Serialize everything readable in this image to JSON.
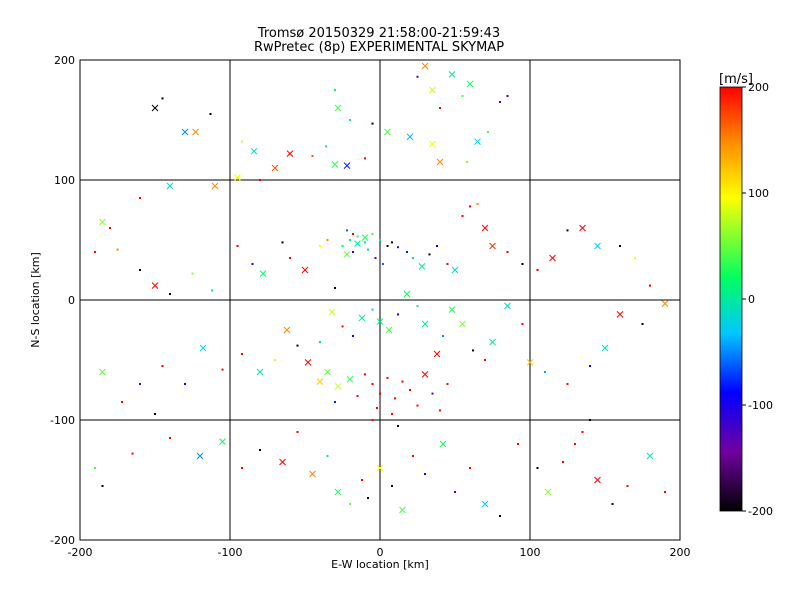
{
  "chart_data": [
    {
      "type": "scatter",
      "title": "Tromsø 20150329 21:58:00-21:59:43",
      "subtitle": "RwPretec (8p) EXPERIMENTAL SKYMAP",
      "xlabel": "E-W location [km]",
      "ylabel": "N-S location [km]",
      "xlim": [
        -200,
        200
      ],
      "ylim": [
        -200,
        200
      ],
      "xticks": [
        -200,
        -100,
        0,
        100,
        200
      ],
      "yticks": [
        -200,
        -100,
        0,
        100,
        200
      ],
      "xtick_labels": [
        "-200",
        "-100",
        "0",
        "100",
        "200"
      ],
      "ytick_labels": [
        "-200",
        "-100",
        "0",
        "100",
        "200"
      ],
      "grid": true,
      "colorscale": {
        "unit": "[m/s]",
        "range": [
          -200,
          200
        ],
        "ticks": [
          -200,
          -100,
          0,
          100,
          200
        ],
        "tick_labels": [
          "-200",
          "-100",
          "0",
          "100",
          "200"
        ],
        "stops": [
          "#000000",
          "#7000a0",
          "#0000ff",
          "#00c8ff",
          "#00ff60",
          "#ffff00",
          "#ff8c00",
          "#ff0000"
        ]
      },
      "markers": [
        "x",
        "dot"
      ],
      "points": [
        [
          -150,
          160,
          -200,
          1
        ],
        [
          -145,
          168,
          -200,
          0
        ],
        [
          -123,
          140,
          150,
          1
        ],
        [
          -113,
          155,
          -200,
          0
        ],
        [
          -130,
          140,
          -50,
          1
        ],
        [
          -92,
          132,
          80,
          0
        ],
        [
          -84,
          124,
          -10,
          1
        ],
        [
          -60,
          122,
          200,
          1
        ],
        [
          -45,
          120,
          170,
          0
        ],
        [
          -36,
          128,
          -20,
          0
        ],
        [
          -30,
          113,
          30,
          1
        ],
        [
          -22,
          112,
          -80,
          1
        ],
        [
          -10,
          118,
          200,
          0
        ],
        [
          -5,
          147,
          -200,
          0
        ],
        [
          5,
          140,
          40,
          1
        ],
        [
          20,
          136,
          -40,
          1
        ],
        [
          35,
          130,
          100,
          1
        ],
        [
          40,
          115,
          150,
          1
        ],
        [
          58,
          115,
          60,
          0
        ],
        [
          65,
          132,
          -20,
          1
        ],
        [
          72,
          140,
          40,
          0
        ],
        [
          80,
          165,
          -150,
          0
        ],
        [
          85,
          170,
          -120,
          0
        ],
        [
          55,
          170,
          40,
          0
        ],
        [
          60,
          180,
          20,
          1
        ],
        [
          48,
          188,
          0,
          1
        ],
        [
          35,
          175,
          80,
          1
        ],
        [
          25,
          186,
          -120,
          0
        ],
        [
          30,
          195,
          150,
          1
        ],
        [
          40,
          160,
          200,
          0
        ],
        [
          -70,
          110,
          170,
          1
        ],
        [
          -80,
          100,
          200,
          0
        ],
        [
          -95,
          102,
          90,
          1
        ],
        [
          -110,
          95,
          150,
          1
        ],
        [
          -140,
          95,
          -20,
          1
        ],
        [
          -160,
          85,
          200,
          0
        ],
        [
          -180,
          60,
          200,
          0
        ],
        [
          -185,
          65,
          60,
          1
        ],
        [
          -190,
          40,
          200,
          0
        ],
        [
          -175,
          42,
          150,
          0
        ],
        [
          -160,
          25,
          -200,
          0
        ],
        [
          -150,
          12,
          200,
          1
        ],
        [
          -140,
          5,
          -200,
          0
        ],
        [
          -125,
          22,
          60,
          0
        ],
        [
          -112,
          8,
          -10,
          0
        ],
        [
          -95,
          45,
          200,
          0
        ],
        [
          -85,
          30,
          -100,
          0
        ],
        [
          -78,
          22,
          20,
          1
        ],
        [
          -65,
          48,
          -200,
          0
        ],
        [
          -60,
          35,
          200,
          0
        ],
        [
          -50,
          25,
          200,
          1
        ],
        [
          -40,
          45,
          100,
          0
        ],
        [
          -35,
          50,
          150,
          0
        ],
        [
          -30,
          10,
          -200,
          0
        ],
        [
          -22,
          38,
          50,
          1
        ],
        [
          -18,
          55,
          200,
          0
        ],
        [
          -15,
          47,
          0,
          1
        ],
        [
          -10,
          52,
          30,
          1
        ],
        [
          -8,
          42,
          -20,
          0
        ],
        [
          -3,
          35,
          -150,
          0
        ],
        [
          2,
          30,
          -60,
          0
        ],
        [
          8,
          48,
          -200,
          0
        ],
        [
          12,
          44,
          -120,
          0
        ],
        [
          18,
          40,
          -80,
          0
        ],
        [
          22,
          35,
          -30,
          0
        ],
        [
          28,
          28,
          0,
          1
        ],
        [
          33,
          38,
          -200,
          0
        ],
        [
          38,
          45,
          -90,
          0
        ],
        [
          45,
          30,
          200,
          0
        ],
        [
          50,
          25,
          -10,
          1
        ],
        [
          55,
          70,
          200,
          0
        ],
        [
          60,
          78,
          200,
          0
        ],
        [
          65,
          80,
          150,
          0
        ],
        [
          70,
          60,
          200,
          1
        ],
        [
          75,
          45,
          180,
          1
        ],
        [
          85,
          40,
          200,
          0
        ],
        [
          95,
          30,
          -200,
          0
        ],
        [
          105,
          25,
          200,
          0
        ],
        [
          115,
          35,
          200,
          1
        ],
        [
          125,
          58,
          -200,
          0
        ],
        [
          135,
          60,
          200,
          1
        ],
        [
          145,
          45,
          -30,
          1
        ],
        [
          160,
          45,
          -200,
          0
        ],
        [
          170,
          35,
          100,
          0
        ],
        [
          180,
          12,
          200,
          0
        ],
        [
          190,
          -3,
          150,
          1
        ],
        [
          175,
          -20,
          -200,
          0
        ],
        [
          160,
          -12,
          200,
          1
        ],
        [
          150,
          -40,
          -10,
          1
        ],
        [
          140,
          -55,
          -100,
          0
        ],
        [
          125,
          -70,
          200,
          0
        ],
        [
          110,
          -60,
          -40,
          0
        ],
        [
          100,
          -52,
          120,
          1
        ],
        [
          95,
          -20,
          200,
          0
        ],
        [
          85,
          -5,
          -20,
          1
        ],
        [
          75,
          -35,
          0,
          1
        ],
        [
          70,
          -50,
          200,
          0
        ],
        [
          62,
          -42,
          -200,
          0
        ],
        [
          55,
          -20,
          60,
          1
        ],
        [
          48,
          -8,
          30,
          1
        ],
        [
          42,
          -30,
          -50,
          0
        ],
        [
          38,
          -45,
          200,
          1
        ],
        [
          30,
          -20,
          0,
          1
        ],
        [
          25,
          -5,
          -10,
          0
        ],
        [
          18,
          5,
          20,
          1
        ],
        [
          12,
          -12,
          -100,
          0
        ],
        [
          6,
          -25,
          40,
          1
        ],
        [
          0,
          -18,
          10,
          1
        ],
        [
          -5,
          -8,
          -20,
          0
        ],
        [
          -12,
          -15,
          0,
          1
        ],
        [
          -18,
          -30,
          -100,
          0
        ],
        [
          -25,
          -22,
          200,
          0
        ],
        [
          -32,
          -10,
          80,
          1
        ],
        [
          -40,
          -35,
          -30,
          0
        ],
        [
          -48,
          -52,
          200,
          1
        ],
        [
          -55,
          -38,
          -200,
          0
        ],
        [
          -62,
          -25,
          150,
          1
        ],
        [
          -70,
          -50,
          80,
          0
        ],
        [
          -80,
          -60,
          -10,
          1
        ],
        [
          -92,
          -45,
          200,
          0
        ],
        [
          -105,
          -58,
          200,
          0
        ],
        [
          -118,
          -40,
          -20,
          1
        ],
        [
          -130,
          -70,
          -100,
          0
        ],
        [
          -145,
          -55,
          200,
          0
        ],
        [
          -160,
          -70,
          -120,
          0
        ],
        [
          -172,
          -85,
          200,
          0
        ],
        [
          -185,
          -60,
          50,
          1
        ],
        [
          -190,
          -140,
          40,
          0
        ],
        [
          -185,
          -155,
          -200,
          0
        ],
        [
          -165,
          -128,
          200,
          0
        ],
        [
          -150,
          -95,
          -200,
          0
        ],
        [
          -140,
          -115,
          200,
          0
        ],
        [
          -120,
          -130,
          -50,
          1
        ],
        [
          -105,
          -118,
          20,
          1
        ],
        [
          -92,
          -140,
          200,
          0
        ],
        [
          -80,
          -125,
          -200,
          0
        ],
        [
          -65,
          -135,
          200,
          1
        ],
        [
          -55,
          -110,
          200,
          0
        ],
        [
          -45,
          -145,
          150,
          1
        ],
        [
          -35,
          -130,
          -10,
          0
        ],
        [
          -28,
          -160,
          30,
          1
        ],
        [
          -20,
          -170,
          50,
          0
        ],
        [
          -12,
          -150,
          200,
          0
        ],
        [
          -8,
          -165,
          -200,
          0
        ],
        [
          0,
          -140,
          100,
          1
        ],
        [
          8,
          -155,
          -200,
          0
        ],
        [
          15,
          -175,
          40,
          1
        ],
        [
          22,
          -130,
          200,
          0
        ],
        [
          30,
          -145,
          -100,
          0
        ],
        [
          42,
          -120,
          20,
          1
        ],
        [
          50,
          -160,
          -150,
          0
        ],
        [
          60,
          -140,
          200,
          0
        ],
        [
          70,
          -170,
          -30,
          1
        ],
        [
          80,
          -180,
          -200,
          0
        ],
        [
          92,
          -120,
          200,
          0
        ],
        [
          105,
          -140,
          -200,
          0
        ],
        [
          112,
          -160,
          60,
          1
        ],
        [
          122,
          -135,
          200,
          0
        ],
        [
          130,
          -120,
          200,
          0
        ],
        [
          135,
          -110,
          200,
          0
        ],
        [
          140,
          -100,
          -200,
          0
        ],
        [
          145,
          -150,
          200,
          1
        ],
        [
          155,
          -170,
          -200,
          0
        ],
        [
          165,
          -155,
          200,
          0
        ],
        [
          180,
          -130,
          -10,
          1
        ],
        [
          190,
          -160,
          200,
          0
        ],
        [
          -10,
          -62,
          200,
          0
        ],
        [
          -5,
          -70,
          200,
          0
        ],
        [
          0,
          -78,
          200,
          0
        ],
        [
          5,
          -65,
          200,
          0
        ],
        [
          10,
          -82,
          200,
          0
        ],
        [
          15,
          -68,
          200,
          0
        ],
        [
          20,
          -75,
          200,
          0
        ],
        [
          -2,
          -90,
          200,
          0
        ],
        [
          8,
          -95,
          200,
          0
        ],
        [
          -15,
          -80,
          200,
          0
        ],
        [
          25,
          -88,
          200,
          0
        ],
        [
          30,
          -62,
          200,
          1
        ],
        [
          -20,
          -66,
          30,
          1
        ],
        [
          -28,
          -72,
          80,
          1
        ],
        [
          -35,
          -60,
          50,
          1
        ],
        [
          -30,
          -85,
          -80,
          0
        ],
        [
          35,
          -78,
          -120,
          0
        ],
        [
          40,
          -92,
          200,
          0
        ],
        [
          -5,
          -100,
          200,
          0
        ],
        [
          12,
          -105,
          -200,
          0
        ],
        [
          -40,
          -68,
          120,
          1
        ],
        [
          45,
          -70,
          200,
          0
        ],
        [
          -25,
          45,
          20,
          0
        ],
        [
          -20,
          50,
          0,
          0
        ],
        [
          -15,
          53,
          30,
          0
        ],
        [
          -10,
          48,
          -20,
          0
        ],
        [
          -5,
          55,
          40,
          0
        ],
        [
          0,
          50,
          10,
          0
        ],
        [
          -18,
          40,
          -120,
          0
        ],
        [
          -22,
          58,
          -60,
          0
        ],
        [
          5,
          45,
          -200,
          0
        ],
        [
          -30,
          175,
          20,
          0
        ],
        [
          -28,
          160,
          40,
          1
        ],
        [
          -20,
          150,
          0,
          0
        ]
      ]
    }
  ]
}
